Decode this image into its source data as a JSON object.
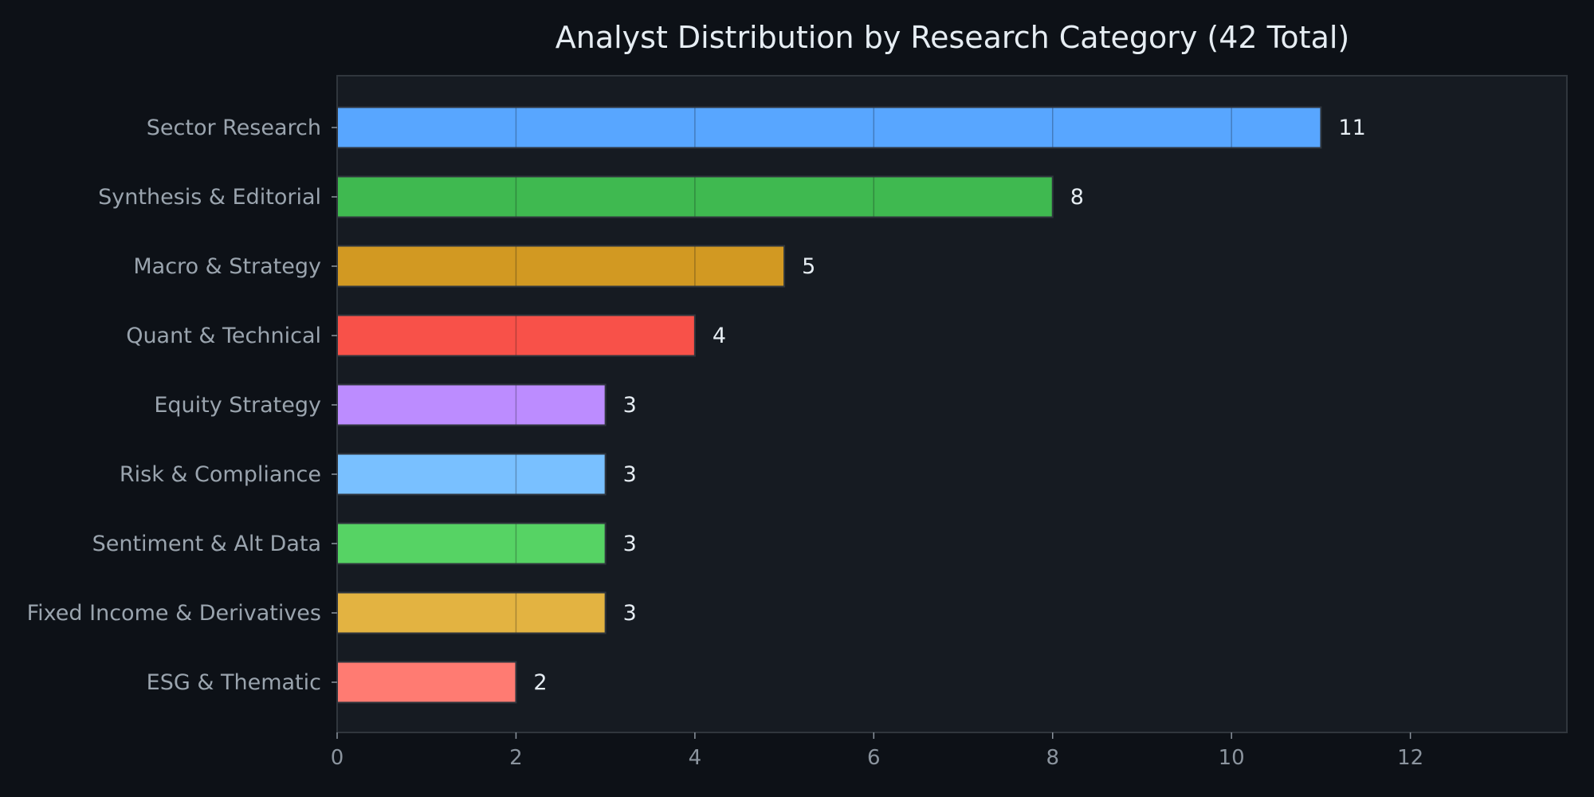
{
  "chart_data": {
    "type": "bar",
    "orientation": "horizontal",
    "title": "Analyst Distribution by Research Category (42 Total)",
    "xlabel": "",
    "ylabel": "",
    "xlim": [
      0,
      13.75
    ],
    "x_ticks": [
      0,
      2,
      4,
      6,
      8,
      10,
      12
    ],
    "grid": "vertical lines drawn over bars only",
    "legend": "none",
    "categories": [
      "Sector Research",
      "Synthesis & Editorial",
      "Macro & Strategy",
      "Quant & Technical",
      "Equity Strategy",
      "Risk & Compliance",
      "Sentiment & Alt Data",
      "Fixed Income & Derivatives",
      "ESG & Thematic"
    ],
    "values": [
      11,
      8,
      5,
      4,
      3,
      3,
      3,
      3,
      2
    ],
    "colors": [
      "#58a6ff",
      "#3fb950",
      "#d29922",
      "#f85149",
      "#bc8cff",
      "#79c0ff",
      "#56d364",
      "#e3b341",
      "#ff7b72"
    ],
    "value_labels": [
      "11",
      "8",
      "5",
      "4",
      "3",
      "3",
      "3",
      "3",
      "2"
    ]
  },
  "theme": {
    "figure_background": "#0d1117",
    "plot_background": "#161b22",
    "axis_color": "#30363d",
    "bar_edge": "#30363d"
  }
}
